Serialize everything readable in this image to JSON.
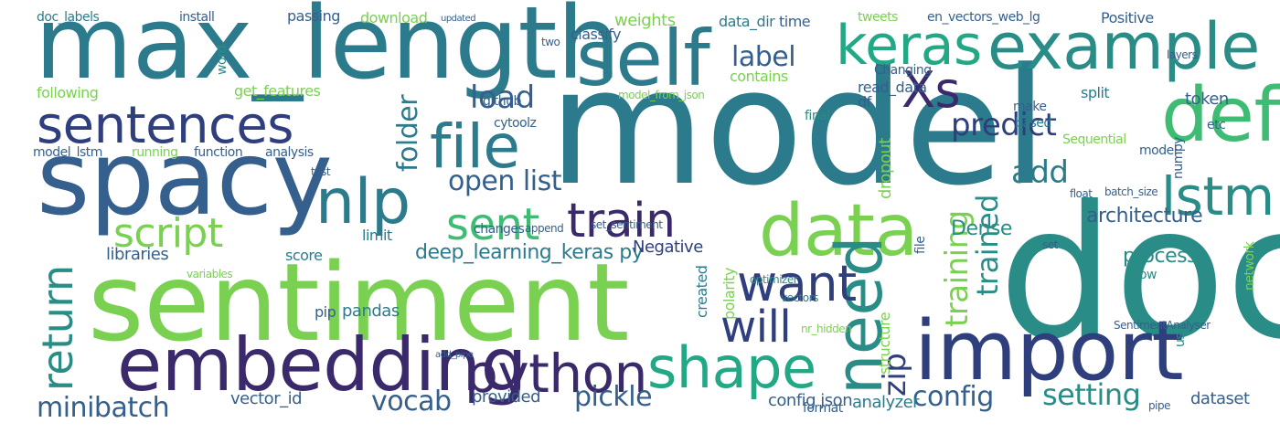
{
  "palette": {
    "dark_purple": "#3b2a6b",
    "navy": "#2f3f7e",
    "blue": "#355f8d",
    "teal_blue": "#2c7b8c",
    "teal": "#2a8c86",
    "green_teal": "#22a884",
    "green": "#3fbc73",
    "light_green": "#7ad151",
    "yellow_green": "#b5de2b"
  },
  "words": [
    {
      "text": "model",
      "color": "#2c7b8c"
    },
    {
      "text": "doc",
      "color": "#2a8c86"
    },
    {
      "text": "sentiment",
      "color": "#7ad151"
    },
    {
      "text": "max_length",
      "color": "#2c7b8c"
    },
    {
      "text": "spacy",
      "color": "#355f8d"
    },
    {
      "text": "import",
      "color": "#2f3f7e"
    },
    {
      "text": "embedding",
      "color": "#3b2a6b"
    },
    {
      "text": "self",
      "color": "#2c7b8c"
    },
    {
      "text": "example",
      "color": "#2a8c86"
    },
    {
      "text": "data",
      "color": "#7ad151"
    },
    {
      "text": "def",
      "color": "#3fbc73"
    },
    {
      "text": "keras",
      "color": "#22a884"
    },
    {
      "text": "sentences",
      "color": "#2f3f7e"
    },
    {
      "text": "python",
      "color": "#3b2a6b"
    },
    {
      "text": "shape",
      "color": "#22a884"
    },
    {
      "text": "need",
      "color": "#2a8c86"
    },
    {
      "text": "file",
      "color": "#2c7b8c"
    },
    {
      "text": "nlp",
      "color": "#2c7b8c"
    },
    {
      "text": "train",
      "color": "#3b2a6b"
    },
    {
      "text": "lstm",
      "color": "#2a8c86"
    },
    {
      "text": "Xs",
      "color": "#3b2a6b"
    },
    {
      "text": "sent",
      "color": "#3fbc73"
    },
    {
      "text": "want",
      "color": "#2f3f7e"
    },
    {
      "text": "will",
      "color": "#2f3f7e"
    },
    {
      "text": "return",
      "color": "#2a8c86"
    },
    {
      "text": "script",
      "color": "#7ad151"
    },
    {
      "text": "load",
      "color": "#355f8d"
    },
    {
      "text": "predict",
      "color": "#2f3f7e"
    },
    {
      "text": "label",
      "color": "#355f8d"
    },
    {
      "text": "folder",
      "color": "#2c7b8c"
    },
    {
      "text": "open list",
      "color": "#355f8d"
    },
    {
      "text": "add",
      "color": "#2c7b8c"
    },
    {
      "text": "training",
      "color": "#7ad151"
    },
    {
      "text": "trained",
      "color": "#2a8c86"
    },
    {
      "text": "zip",
      "color": "#2f3f7e"
    },
    {
      "text": "minibatch",
      "color": "#355f8d"
    },
    {
      "text": "vocab",
      "color": "#355f8d"
    },
    {
      "text": "pickle",
      "color": "#355f8d"
    },
    {
      "text": "config",
      "color": "#355f8d"
    },
    {
      "text": "setting",
      "color": "#2a8c86"
    },
    {
      "text": "deep_learning_keras py",
      "color": "#2c7b8c"
    },
    {
      "text": "Dense",
      "color": "#2a8c86"
    },
    {
      "text": "architecture",
      "color": "#355f8d"
    },
    {
      "text": "process",
      "color": "#2a8c86"
    },
    {
      "text": "dataset",
      "color": "#355f8d"
    },
    {
      "text": "analyzer",
      "color": "#2c7b8c"
    },
    {
      "text": "config json",
      "color": "#355f8d"
    },
    {
      "text": "vector_id",
      "color": "#355f8d"
    },
    {
      "text": "provided",
      "color": "#355f8d"
    },
    {
      "text": "pip",
      "color": "#355f8d"
    },
    {
      "text": "pandas",
      "color": "#2c7b8c"
    },
    {
      "text": "libraries",
      "color": "#355f8d"
    },
    {
      "text": "score",
      "color": "#2c7b8c"
    },
    {
      "text": "limit",
      "color": "#2c7b8c"
    },
    {
      "text": "Negative",
      "color": "#2f3f7e"
    },
    {
      "text": "created",
      "color": "#2c7b8c"
    },
    {
      "text": "polarity",
      "color": "#7ad151"
    },
    {
      "text": "dropout",
      "color": "#7ad151"
    },
    {
      "text": "structure",
      "color": "#7ad151"
    },
    {
      "text": "token",
      "color": "#355f8d"
    },
    {
      "text": "split",
      "color": "#2c7b8c"
    },
    {
      "text": "Positive",
      "color": "#355f8d"
    },
    {
      "text": "tweets",
      "color": "#7ad151"
    },
    {
      "text": "en_vectors_web_lg",
      "color": "#355f8d"
    },
    {
      "text": "data_dir",
      "color": "#2c7b8c"
    },
    {
      "text": "time",
      "color": "#355f8d"
    },
    {
      "text": "weights",
      "color": "#7ad151"
    },
    {
      "text": "download",
      "color": "#7ad151"
    },
    {
      "text": "passing",
      "color": "#355f8d"
    },
    {
      "text": "install",
      "color": "#355f8d"
    },
    {
      "text": "doc_labels",
      "color": "#2c7b8c"
    },
    {
      "text": "classify",
      "color": "#355f8d"
    },
    {
      "text": "Changing",
      "color": "#355f8d"
    },
    {
      "text": "read_data",
      "color": "#355f8d"
    },
    {
      "text": "df",
      "color": "#355f8d"
    },
    {
      "text": "make",
      "color": "#355f8d"
    },
    {
      "text": "based",
      "color": "#2c7b8c"
    },
    {
      "text": "final",
      "color": "#2a8c86"
    },
    {
      "text": "contains",
      "color": "#7ad151"
    },
    {
      "text": "following",
      "color": "#7ad151"
    },
    {
      "text": "get_features",
      "color": "#7ad151"
    },
    {
      "text": "word",
      "color": "#2a8c86"
    },
    {
      "text": "github",
      "color": "#355f8d"
    },
    {
      "text": "cytoolz",
      "color": "#355f8d"
    },
    {
      "text": "model_lstm",
      "color": "#355f8d"
    },
    {
      "text": "running",
      "color": "#7ad151"
    },
    {
      "text": "function",
      "color": "#355f8d"
    },
    {
      "text": "analysis",
      "color": "#355f8d"
    },
    {
      "text": "test",
      "color": "#355f8d"
    },
    {
      "text": "Sequential",
      "color": "#7ad151"
    },
    {
      "text": "model",
      "color": "#355f8d"
    },
    {
      "text": "numpy",
      "color": "#355f8d"
    },
    {
      "text": "etc",
      "color": "#355f8d"
    },
    {
      "text": "changes",
      "color": "#355f8d"
    },
    {
      "text": "append",
      "color": "#355f8d"
    },
    {
      "text": "set_sentiment",
      "color": "#355f8d"
    },
    {
      "text": "float",
      "color": "#355f8d"
    },
    {
      "text": "batch_size",
      "color": "#355f8d"
    },
    {
      "text": "network",
      "color": "#7ad151"
    },
    {
      "text": "set",
      "color": "#355f8d"
    },
    {
      "text": "variables",
      "color": "#7ad151"
    },
    {
      "text": "Now",
      "color": "#2a8c86"
    },
    {
      "text": "use",
      "color": "#2a8c86"
    },
    {
      "text": "format",
      "color": "#355f8d"
    },
    {
      "text": "pipe",
      "color": "#355f8d"
    },
    {
      "text": "nr_hidden",
      "color": "#7ad151"
    },
    {
      "text": "vectors",
      "color": "#2c7b8c"
    },
    {
      "text": "SentimentAnalyser",
      "color": "#355f8d"
    },
    {
      "text": "file",
      "color": "#355f8d"
    },
    {
      "text": "two",
      "color": "#355f8d"
    },
    {
      "text": "layers",
      "color": "#355f8d"
    },
    {
      "text": "updated",
      "color": "#355f8d"
    },
    {
      "text": "model_from_json",
      "color": "#7ad151"
    },
    {
      "text": "add_pipe",
      "color": "#355f8d"
    },
    {
      "text": "optimizer",
      "color": "#2a8c86"
    }
  ]
}
